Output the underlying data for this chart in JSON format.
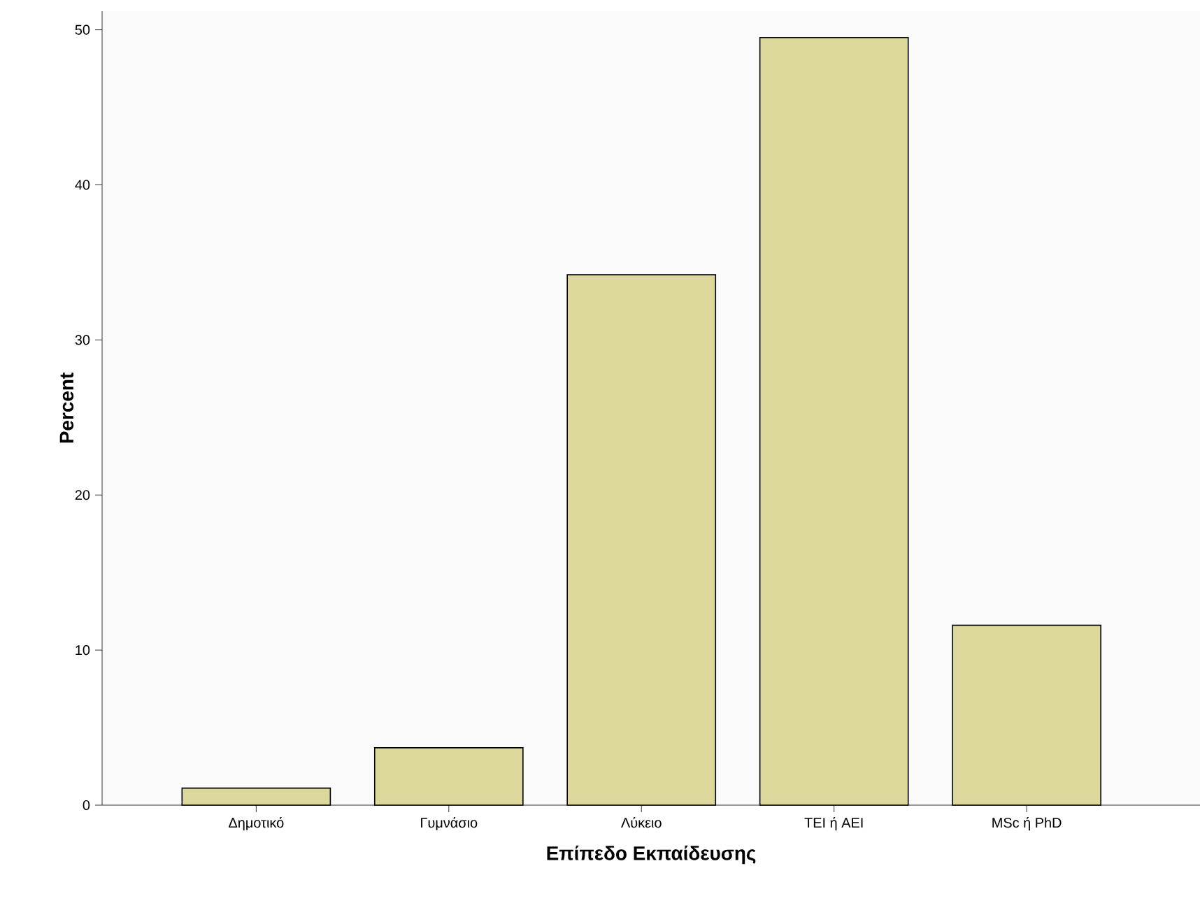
{
  "chart_data": {
    "type": "bar",
    "xlabel": "Επίπεδο Εκπαίδευσης",
    "ylabel": "Percent",
    "categories": [
      "Δημοτικό",
      "Γυμνάσιο",
      "Λύκειο",
      "ΤΕΙ ή ΑΕΙ",
      "MSc ή PhD"
    ],
    "values": [
      1.1,
      3.7,
      34.2,
      49.5,
      11.6
    ],
    "color": "#dcd79a",
    "ylim": [
      0,
      51.2
    ],
    "yticks": [
      0,
      10,
      20,
      30,
      40,
      50
    ],
    "grid": false
  }
}
